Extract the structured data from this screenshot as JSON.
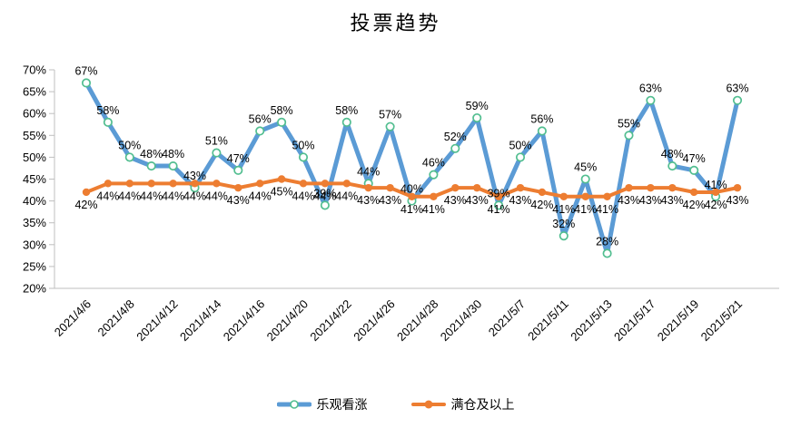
{
  "chart_data": {
    "type": "line",
    "title": "投票趋势",
    "n_points": 31,
    "x_tick_every": 2,
    "x_tick_labels": [
      "2021/4/6",
      "2021/4/8",
      "2021/4/12",
      "2021/4/14",
      "2021/4/16",
      "2021/4/20",
      "2021/4/22",
      "2021/4/26",
      "2021/4/28",
      "2021/4/30",
      "2021/5/7",
      "2021/5/11",
      "2021/5/13",
      "2021/5/17",
      "2021/5/19",
      "2021/5/21"
    ],
    "series": [
      {
        "name": "乐观看涨",
        "color": "#5B9BD5",
        "marker": "open-circle",
        "marker_color": "#52BE90",
        "values": [
          67,
          58,
          50,
          48,
          48,
          43,
          51,
          47,
          56,
          58,
          50,
          39,
          58,
          44,
          57,
          40,
          46,
          52,
          59,
          39,
          50,
          56,
          32,
          45,
          28,
          55,
          63,
          48,
          47,
          41,
          63
        ]
      },
      {
        "name": "满仓及以上",
        "color": "#ED7D31",
        "marker": "filled-circle",
        "marker_color": "#ED7D31",
        "values": [
          42,
          44,
          44,
          44,
          44,
          44,
          44,
          43,
          44,
          45,
          44,
          44,
          44,
          43,
          43,
          41,
          41,
          43,
          43,
          41,
          43,
          42,
          41,
          41,
          41,
          43,
          43,
          43,
          42,
          42,
          43
        ]
      }
    ],
    "ylim": [
      20,
      70
    ],
    "y_tick_step": 5,
    "y_ticks": [
      "20%",
      "25%",
      "30%",
      "35%",
      "40%",
      "45%",
      "50%",
      "55%",
      "60%",
      "65%",
      "70%"
    ],
    "data_label_format": "percent",
    "grid": "none",
    "axis_color": "#BFBFBF",
    "label_color": "#000000",
    "legend_position": "bottom"
  }
}
